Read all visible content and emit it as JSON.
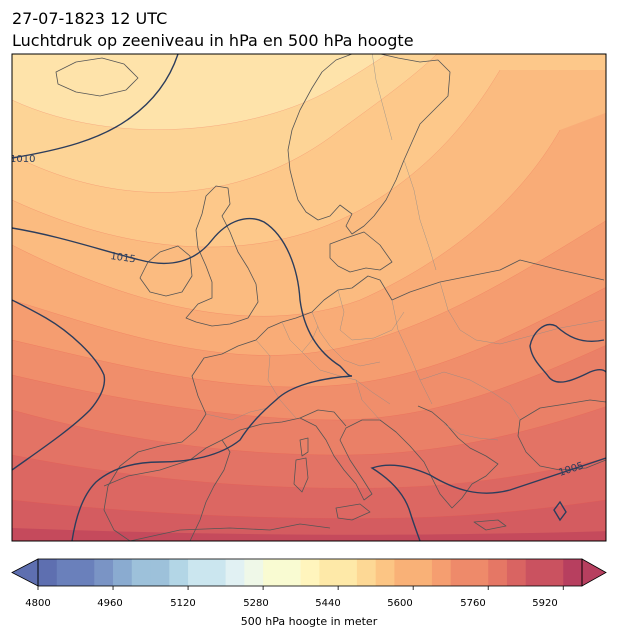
{
  "title": {
    "line1": "27-07-1823 12 UTC",
    "line2": "Luchtdruk op zeeniveau in hPa en 500 hPa hoogte"
  },
  "isobar_labels": [
    "1010",
    "1015",
    "1005"
  ],
  "colorbar": {
    "label": "500 hPa hoogte in meter",
    "ticks": [
      "4800",
      "4960",
      "5120",
      "5280",
      "5440",
      "5600",
      "5760",
      "5920"
    ],
    "range": [
      4800,
      5960
    ],
    "step": 40,
    "colormap": [
      "#5e6fb0",
      "#6a80bb",
      "#7a94c5",
      "#8aabd0",
      "#9dc1da",
      "#b3d6e6",
      "#cbe6ef",
      "#e1f1f3",
      "#eff8e8",
      "#f9fbd2",
      "#fff5bd",
      "#fee9a8",
      "#fdd895",
      "#fcc584",
      "#f9b177",
      "#f59e70",
      "#ee8a6a",
      "#e57765",
      "#d96462",
      "#ca5260",
      "#b73f5f"
    ],
    "extend": "both"
  },
  "map_data": {
    "field": "500 hPa geopotential height (filled) with mean sea level pressure isolines",
    "bands_top_to_bottom": [
      "#fee3aa",
      "#fdd496",
      "#fdc88a",
      "#fbbb80",
      "#f9ac77",
      "#f59d70",
      "#f08e6b",
      "#ea8067",
      "#e37365",
      "#dc6762",
      "#d45c60",
      "#c54a5c"
    ],
    "isobar_color": "#2c3d5c",
    "border_color": "#555555"
  }
}
